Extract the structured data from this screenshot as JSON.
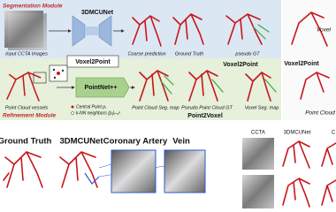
{
  "top_figure": {
    "segmentation_module": "Segmentation Module",
    "refinement_module": "Refinement Module",
    "network_1": "3DMCUNet",
    "network_2": "PointNet++",
    "input_caption": "Input CCTA Images",
    "coarse_caption": "Coarse prediction",
    "gt_caption": "Ground Truth",
    "pseudo_gt_caption": "pseudo GT",
    "voxel2point_left": "Voxel2Point",
    "voxel2point_center": "Voxel2Point",
    "voxel2point_right": "Voxel2Point",
    "point_cloud_caption": "Point Cloud vessels",
    "central_point": "Central Point pᵢ",
    "knn_neighbors": "k-NN neighbors {pⱼ}ⱼ₌₁ᵏ",
    "pc_seg_caption": "Point Cloud Seg. map",
    "pseudo_pc_gt_caption": "Pseudo Point Cloud GT",
    "voxel_seg_caption": "Voxel Seg. map",
    "point2voxel": "Point2Voxel",
    "voxel_right": "Voxel",
    "point_cloud_right": "Point Cloud"
  },
  "bottom_left": {
    "headers": [
      "Ground Truth",
      "3DMCUNet",
      "Coronary Artery",
      "Vein"
    ]
  },
  "bottom_right": {
    "headers": [
      "CCTA",
      "3DMCUNet",
      "C"
    ]
  }
}
